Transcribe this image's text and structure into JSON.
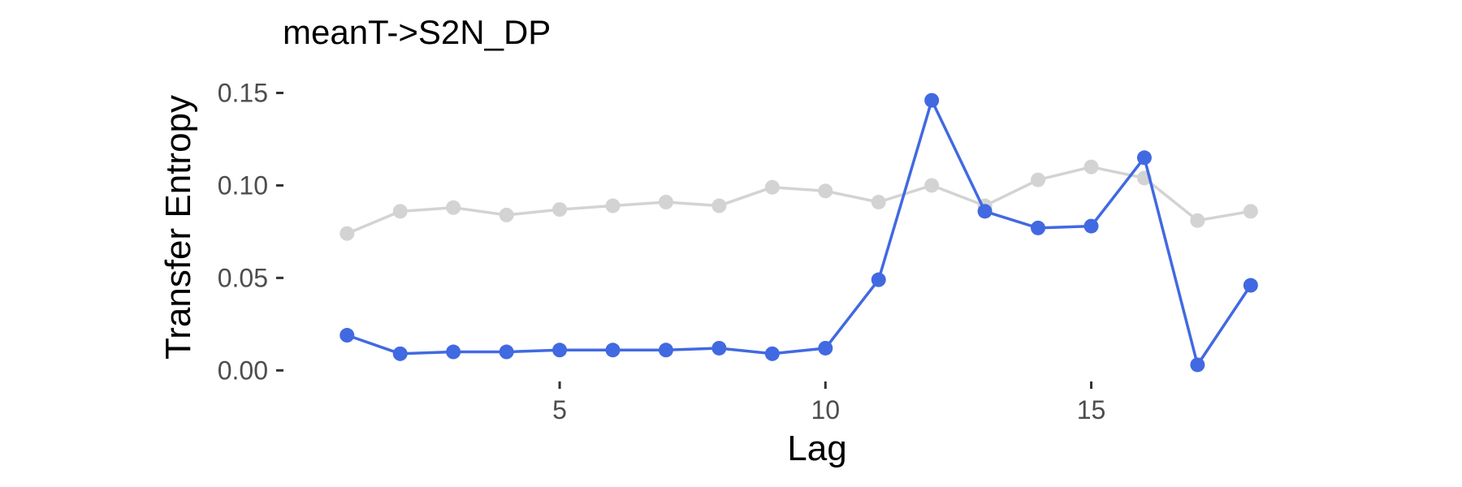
{
  "chart_data": {
    "type": "line",
    "title": "meanT->S2N_DP",
    "xlabel": "Lag",
    "ylabel": "Transfer Entropy",
    "xlim": [
      0.4,
      18.4
    ],
    "ylim": [
      -0.006,
      0.159
    ],
    "x_ticks": [
      {
        "value": 5,
        "label": "5"
      },
      {
        "value": 10,
        "label": "10"
      },
      {
        "value": 15,
        "label": "15"
      }
    ],
    "y_ticks": [
      {
        "value": 0.0,
        "label": "0.00"
      },
      {
        "value": 0.05,
        "label": "0.05"
      },
      {
        "value": 0.1,
        "label": "0.10"
      },
      {
        "value": 0.15,
        "label": "0.15"
      }
    ],
    "grid": false,
    "legend": "none",
    "x": [
      1,
      2,
      3,
      4,
      5,
      6,
      7,
      8,
      9,
      10,
      11,
      12,
      13,
      14,
      15,
      16,
      17,
      18
    ],
    "series": [
      {
        "color": "#d3d3d3",
        "values": [
          0.074,
          0.086,
          0.088,
          0.084,
          0.087,
          0.089,
          0.091,
          0.089,
          0.099,
          0.097,
          0.091,
          0.1,
          0.089,
          0.103,
          0.11,
          0.104,
          0.081,
          0.086
        ]
      },
      {
        "color": "#4169e1",
        "values": [
          0.019,
          0.009,
          0.01,
          0.01,
          0.011,
          0.011,
          0.011,
          0.012,
          0.009,
          0.012,
          0.049,
          0.146,
          0.086,
          0.077,
          0.078,
          0.115,
          0.003,
          0.046
        ]
      }
    ]
  }
}
